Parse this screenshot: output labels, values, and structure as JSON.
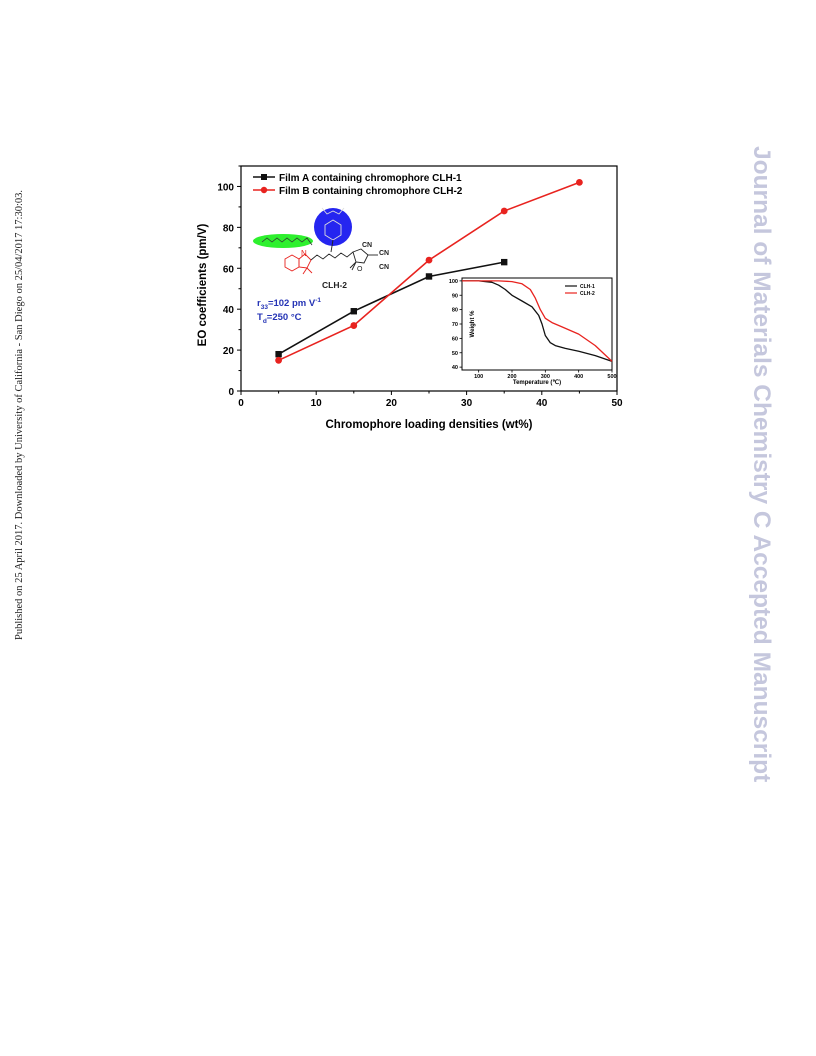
{
  "side_left_text": "Published on 25 April 2017. Downloaded by University of California - San Diego on 25/04/2017 17:30:03.",
  "side_right_text": "Journal of Materials Chemistry C Accepted Manuscript",
  "colors": {
    "series_a": "#111111",
    "series_b": "#e8231f",
    "annotation": "#2433b5",
    "blue_circle": "#2525f0",
    "green_ellipse": "#2ef02e"
  },
  "chart_data": [
    {
      "type": "line",
      "title": "",
      "xlabel": "Chromophore loading densities (wt%)",
      "ylabel": "EO coefficients (pm/V)",
      "xlim": [
        0,
        50
      ],
      "ylim": [
        0,
        110
      ],
      "xticks": [
        0,
        10,
        20,
        30,
        40,
        50
      ],
      "yticks": [
        0,
        20,
        40,
        60,
        80,
        100
      ],
      "legend_position": "top-left",
      "series": [
        {
          "name": "Film A containing chromophore CLH-1",
          "marker": "square",
          "color": "#111111",
          "x": [
            5,
            15,
            25,
            35
          ],
          "y": [
            18,
            39,
            56,
            63
          ]
        },
        {
          "name": "Film B containing chromophore CLH-2",
          "marker": "circle",
          "color": "#e8231f",
          "x": [
            5,
            15,
            25,
            35,
            45
          ],
          "y": [
            15,
            32,
            64,
            88,
            102
          ]
        }
      ],
      "annotations": {
        "molecule_label": "CLH-2",
        "cn_labels": [
          "CN",
          "CN",
          "CN"
        ],
        "r33_text": "r",
        "r33_sub": "33",
        "r33_value": "=102 pm V",
        "r33_sup": "-1",
        "td_text": "T",
        "td_sub": "d",
        "td_value": "=250 °C"
      }
    },
    {
      "type": "line",
      "title": "",
      "xlabel": "Temperature (℃)",
      "ylabel": "Weight %",
      "xlim": [
        50,
        500
      ],
      "ylim": [
        38,
        102
      ],
      "xticks": [
        100,
        200,
        300,
        400,
        500
      ],
      "yticks": [
        40,
        50,
        60,
        70,
        80,
        90,
        100
      ],
      "legend_position": "top-right",
      "series": [
        {
          "name": "CLH-1",
          "color": "#111111",
          "x": [
            50,
            100,
            140,
            160,
            180,
            200,
            230,
            260,
            280,
            290,
            300,
            315,
            330,
            360,
            400,
            450,
            500
          ],
          "y": [
            100,
            100,
            99,
            97,
            94,
            90,
            86,
            82,
            76,
            70,
            62,
            57,
            55,
            53,
            51,
            48,
            44
          ]
        },
        {
          "name": "CLH-2",
          "color": "#e8231f",
          "x": [
            50,
            100,
            160,
            200,
            230,
            255,
            270,
            285,
            300,
            320,
            350,
            400,
            450,
            500
          ],
          "y": [
            100,
            100,
            100,
            99.5,
            98,
            94,
            88,
            80,
            74,
            71,
            68,
            63,
            55,
            44
          ]
        }
      ]
    }
  ]
}
